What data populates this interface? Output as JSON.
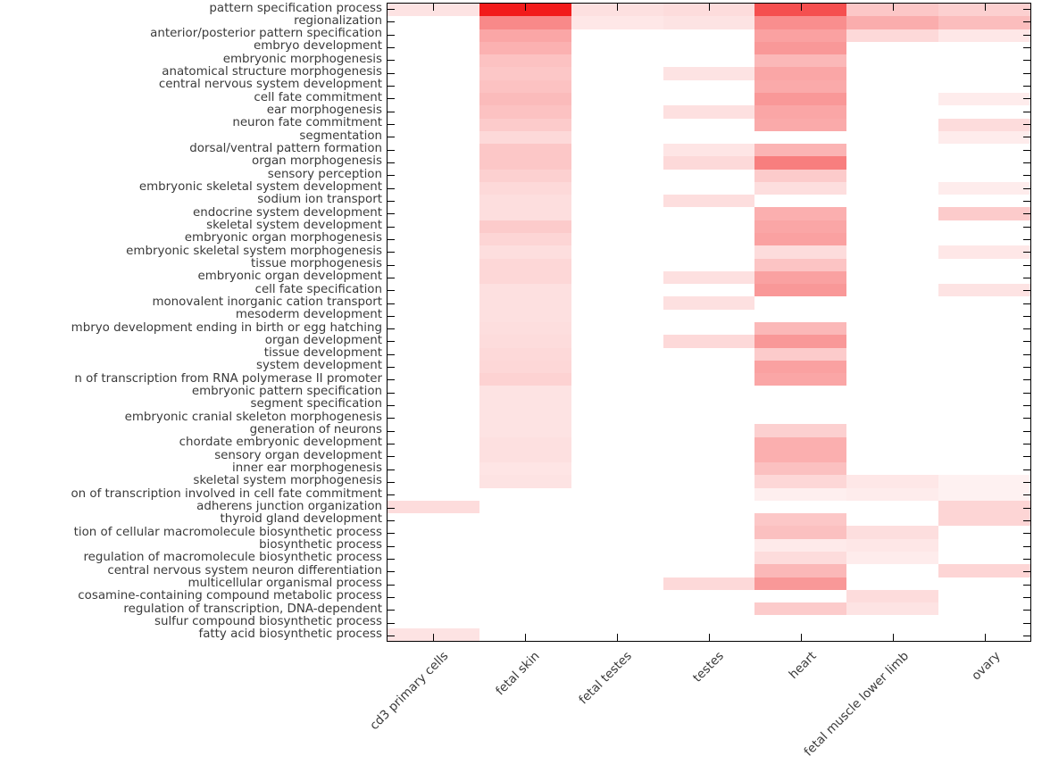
{
  "figure": {
    "background": "#ffffff",
    "text_color": "#3a3a3a",
    "spine_color": "#000000"
  },
  "chart_data": {
    "type": "heatmap",
    "title": "",
    "xlabel": "",
    "ylabel": "",
    "colormap": {
      "low": "#ffffff",
      "high": "#f01414",
      "scale_min": 0,
      "scale_max": 1
    },
    "layout": {
      "x_tick_rotation_deg": 45,
      "ticks_on_all_four_spines": true,
      "grid": false,
      "legend": "none"
    },
    "columns": [
      "cd3 primary cells",
      "fetal skin",
      "fetal testes",
      "testes",
      "heart",
      "fetal muscle lower limb",
      "ovary"
    ],
    "rows": [
      "pattern specification process",
      "regionalization",
      "anterior/posterior pattern specification",
      "embryo development",
      "embryonic morphogenesis",
      "anatomical structure morphogenesis",
      "central nervous system development",
      "cell fate commitment",
      "ear morphogenesis",
      "neuron fate commitment",
      "segmentation",
      "dorsal/ventral pattern formation",
      "organ morphogenesis",
      "sensory perception",
      "embryonic skeletal system development",
      "sodium ion transport",
      "endocrine system development",
      "skeletal system development",
      "embryonic organ morphogenesis",
      "embryonic skeletal system morphogenesis",
      "tissue morphogenesis",
      "embryonic organ development",
      "cell fate specification",
      "monovalent inorganic cation transport",
      "mesoderm development",
      "mbryo development ending in birth or egg hatching",
      "organ development",
      "tissue development",
      "system development",
      "n of transcription from RNA polymerase II promoter",
      "embryonic pattern specification",
      "segment specification",
      "embryonic cranial skeleton morphogenesis",
      "generation of neurons",
      "chordate embryonic development",
      "sensory organ development",
      "inner ear morphogenesis",
      "skeletal system morphogenesis",
      "on of transcription involved in cell fate commitment",
      "adherens junction organization",
      "thyroid gland development",
      "tion of cellular macromolecule biosynthetic process",
      "biosynthetic process",
      "regulation of macromolecule biosynthetic process",
      "central nervous system neuron differentiation",
      "multicellular organismal process",
      "cosamine-containing compound metabolic process",
      "regulation of transcription, DNA-dependent",
      "sulfur compound biosynthetic process",
      "fatty acid biosynthetic process"
    ],
    "values": [
      [
        0.12,
        0.97,
        0.13,
        0.15,
        0.75,
        0.24,
        0.2
      ],
      [
        0,
        0.5,
        0.1,
        0.12,
        0.48,
        0.35,
        0.28
      ],
      [
        0,
        0.38,
        0,
        0,
        0.4,
        0.16,
        0.1
      ],
      [
        0,
        0.33,
        0,
        0,
        0.44,
        0,
        0
      ],
      [
        0,
        0.26,
        0,
        0,
        0.3,
        0,
        0
      ],
      [
        0,
        0.24,
        0,
        0.12,
        0.38,
        0,
        0
      ],
      [
        0,
        0.26,
        0,
        0,
        0.36,
        0,
        0
      ],
      [
        0,
        0.29,
        0,
        0,
        0.44,
        0,
        0.08
      ],
      [
        0,
        0.26,
        0,
        0.13,
        0.38,
        0,
        0
      ],
      [
        0,
        0.22,
        0,
        0,
        0.36,
        0,
        0.15
      ],
      [
        0,
        0.16,
        0,
        0,
        0,
        0,
        0.08
      ],
      [
        0,
        0.24,
        0,
        0.11,
        0.32,
        0,
        0
      ],
      [
        0,
        0.24,
        0,
        0.16,
        0.55,
        0,
        0
      ],
      [
        0,
        0.2,
        0,
        0,
        0.22,
        0,
        0
      ],
      [
        0,
        0.16,
        0,
        0,
        0.14,
        0,
        0.08
      ],
      [
        0,
        0.14,
        0,
        0.14,
        0,
        0,
        0
      ],
      [
        0,
        0.14,
        0,
        0,
        0.34,
        0,
        0.22
      ],
      [
        0,
        0.22,
        0,
        0,
        0.38,
        0,
        0
      ],
      [
        0,
        0.18,
        0,
        0,
        0.4,
        0,
        0
      ],
      [
        0,
        0.14,
        0,
        0,
        0.15,
        0,
        0.1
      ],
      [
        0,
        0.17,
        0,
        0,
        0.25,
        0,
        0
      ],
      [
        0,
        0.17,
        0,
        0.13,
        0.4,
        0,
        0
      ],
      [
        0,
        0.13,
        0,
        0,
        0.44,
        0,
        0.12
      ],
      [
        0,
        0.13,
        0,
        0.13,
        0,
        0,
        0
      ],
      [
        0,
        0.13,
        0,
        0,
        0,
        0,
        0
      ],
      [
        0,
        0.14,
        0,
        0,
        0.3,
        0,
        0
      ],
      [
        0,
        0.15,
        0,
        0.16,
        0.44,
        0,
        0
      ],
      [
        0,
        0.16,
        0,
        0,
        0.22,
        0,
        0
      ],
      [
        0,
        0.17,
        0,
        0,
        0.4,
        0,
        0
      ],
      [
        0,
        0.19,
        0,
        0,
        0.38,
        0,
        0
      ],
      [
        0,
        0.12,
        0,
        0,
        0,
        0,
        0
      ],
      [
        0,
        0.12,
        0,
        0,
        0,
        0,
        0
      ],
      [
        0,
        0.12,
        0,
        0,
        0,
        0,
        0
      ],
      [
        0,
        0.12,
        0,
        0,
        0.2,
        0,
        0
      ],
      [
        0,
        0.13,
        0,
        0,
        0.34,
        0,
        0
      ],
      [
        0,
        0.13,
        0,
        0,
        0.34,
        0,
        0
      ],
      [
        0,
        0.11,
        0,
        0,
        0.27,
        0,
        0
      ],
      [
        0,
        0.12,
        0,
        0,
        0.17,
        0.1,
        0.06
      ],
      [
        0,
        0,
        0,
        0,
        0.07,
        0.08,
        0.06
      ],
      [
        0.15,
        0,
        0,
        0,
        0,
        0,
        0.18
      ],
      [
        0,
        0,
        0,
        0,
        0.24,
        0,
        0.18
      ],
      [
        0,
        0,
        0,
        0,
        0.27,
        0.14,
        0
      ],
      [
        0,
        0,
        0,
        0,
        0.09,
        0.1,
        0
      ],
      [
        0,
        0,
        0,
        0,
        0.15,
        0.08,
        0
      ],
      [
        0,
        0,
        0,
        0,
        0.3,
        0,
        0.18
      ],
      [
        0,
        0,
        0,
        0.16,
        0.44,
        0,
        0
      ],
      [
        0,
        0,
        0,
        0,
        0,
        0.15,
        0
      ],
      [
        0,
        0,
        0,
        0,
        0.22,
        0.12,
        0
      ],
      [
        0,
        0,
        0,
        0,
        0,
        0,
        0
      ],
      [
        0.12,
        0,
        0,
        0,
        0,
        0,
        0
      ]
    ]
  }
}
